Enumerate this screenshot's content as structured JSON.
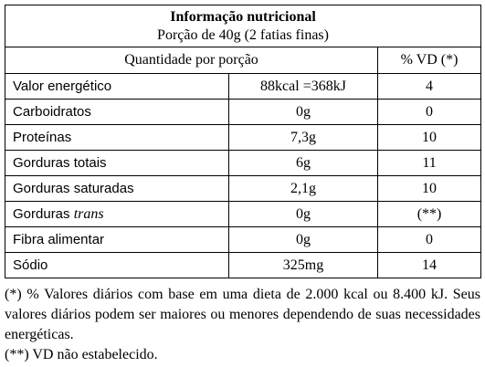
{
  "header": {
    "title": "Informação nutricional",
    "serving": "Porção de 40g (2 fatias finas)"
  },
  "table": {
    "columns": [
      "Quantidade por porção",
      "% VD (*)"
    ],
    "rows": [
      {
        "label": "Valor energético",
        "amount": "88kcal =368kJ",
        "vd": "4"
      },
      {
        "label": "Carboidratos",
        "amount": "0g",
        "vd": "0"
      },
      {
        "label": "Proteínas",
        "amount": "7,3g",
        "vd": "10"
      },
      {
        "label": "Gorduras totais",
        "amount": "6g",
        "vd": "11"
      },
      {
        "label": "Gorduras saturadas",
        "amount": "2,1g",
        "vd": "10"
      },
      {
        "label": "Gorduras",
        "emphasis": "trans",
        "amount": "0g",
        "vd": "(**)"
      },
      {
        "label": "Fibra alimentar",
        "amount": "0g",
        "vd": "0"
      },
      {
        "label": "Sódio",
        "amount": "325mg",
        "vd": "14"
      }
    ]
  },
  "footnotes": [
    "(*) % Valores diários com base em uma dieta de 2.000 kcal ou 8.400 kJ. Seus valores diários podem ser maiores ou menores dependendo de suas necessidades energéticas.",
    "(**) VD não estabelecido."
  ]
}
